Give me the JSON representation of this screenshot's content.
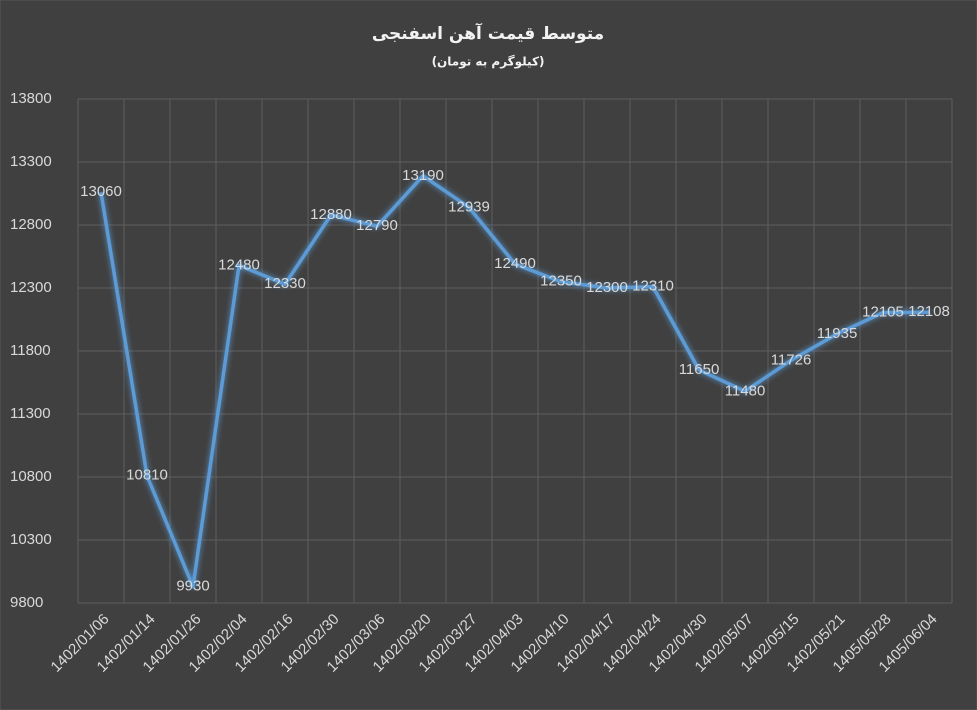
{
  "chart_data": {
    "type": "line",
    "title": "متوسط قیمت آهن اسفنجی",
    "subtitle": "(کیلوگرم به تومان)",
    "categories": [
      "1402/01/06",
      "1402/01/14",
      "1402/01/26",
      "1402/02/04",
      "1402/02/16",
      "1402/02/30",
      "1402/03/06",
      "1402/03/20",
      "1402/03/27",
      "1402/04/03",
      "1402/04/10",
      "1402/04/17",
      "1402/04/24",
      "1402/04/30",
      "1402/05/07",
      "1402/05/15",
      "1402/05/21",
      "1405/05/28",
      "1405/06/04"
    ],
    "values": [
      13060,
      10810,
      9930,
      12480,
      12330,
      12880,
      12790,
      13190,
      12939,
      12490,
      12350,
      12300,
      12310,
      11650,
      11480,
      11726,
      11935,
      12105,
      12108
    ],
    "color": "#5b9bd5",
    "ylim": [
      9800,
      13800
    ],
    "yticks": [
      9800,
      10300,
      10800,
      11300,
      11800,
      12300,
      12800,
      13300,
      13800
    ],
    "grid": true
  }
}
